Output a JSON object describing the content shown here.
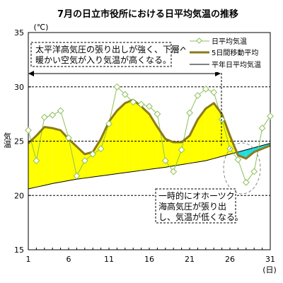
{
  "chart_data": {
    "type": "line",
    "title": "7月の日立市役所における日平均気温の推移",
    "ylabel": "気温",
    "yunit": "(℃)",
    "xunit": "(日)",
    "ylim": [
      15,
      35
    ],
    "xlim": [
      1,
      31
    ],
    "yticks": [
      "15",
      "20",
      "25",
      "30",
      "35"
    ],
    "xticks": [
      "1",
      "6",
      "11",
      "16",
      "21",
      "26",
      "31"
    ],
    "grid_y": [
      20,
      25,
      30
    ],
    "legend_position": "top-right",
    "x": [
      1,
      2,
      3,
      4,
      5,
      6,
      7,
      8,
      9,
      10,
      11,
      12,
      13,
      14,
      15,
      16,
      17,
      18,
      19,
      20,
      21,
      22,
      23,
      24,
      25,
      26,
      27,
      28,
      29,
      30,
      31
    ],
    "series": [
      {
        "name": "日平均気温",
        "color": "#8fbf5a",
        "values": [
          26.0,
          23.2,
          27.2,
          27.4,
          27.8,
          25.3,
          21.8,
          23.2,
          23.8,
          24.3,
          26.6,
          30.0,
          29.3,
          28.6,
          28.4,
          28.2,
          27.5,
          23.2,
          22.2,
          24.2,
          27.6,
          29.2,
          29.8,
          29.5,
          27.0,
          24.3,
          23.3,
          21.2,
          22.2,
          26.2,
          27.3
        ]
      },
      {
        "name": "5日間移動平均",
        "color": "#8b7a1a",
        "values": [
          24.8,
          25.5,
          26.3,
          26.2,
          26.0,
          25.2,
          24.5,
          23.8,
          24.0,
          25.2,
          26.8,
          27.8,
          28.5,
          28.8,
          28.2,
          27.5,
          26.3,
          25.2,
          24.9,
          24.9,
          25.5,
          27.0,
          28.0,
          28.5,
          27.5,
          25.5,
          23.7,
          23.4,
          24.0,
          24.3,
          24.6
        ]
      },
      {
        "name": "平年日平均気温",
        "color": "#000000",
        "values": [
          20.6,
          20.77,
          20.93,
          21.1,
          21.23,
          21.37,
          21.5,
          21.6,
          21.7,
          21.8,
          21.9,
          22.0,
          22.1,
          22.2,
          22.3,
          22.4,
          22.5,
          22.6,
          22.72,
          22.84,
          22.96,
          23.08,
          23.2,
          23.4,
          23.6,
          23.8,
          24.0,
          24.2,
          24.4,
          24.6,
          24.8
        ]
      }
    ],
    "annotations": [
      {
        "lines": [
          "太平洋高気圧の張り出しが強く、下層へ",
          "暖かい空気が入り気温が高くなる。"
        ]
      },
      {
        "lines": [
          "一時的にオホーツク",
          "海高気圧が張り出",
          "し、気温が低くなる。"
        ]
      }
    ],
    "colors": {
      "above_normal_fill": "#ffff00",
      "below_normal_fill": "#22dddd",
      "daily_marker_fill": "#ffffff"
    }
  }
}
